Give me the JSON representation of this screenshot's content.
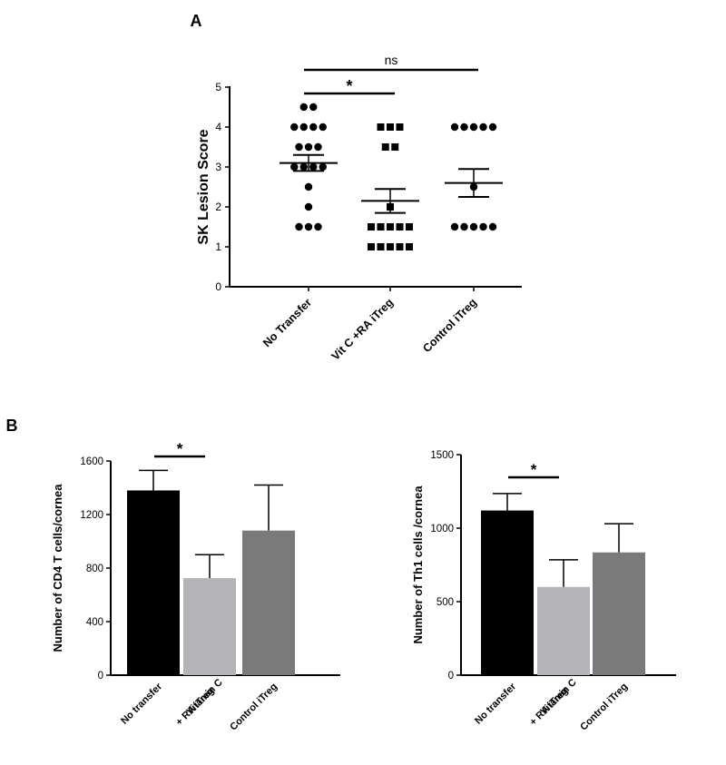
{
  "panels": {
    "a": {
      "letter": "A"
    },
    "b": {
      "letter": "B"
    }
  },
  "colors": {
    "axis": "#000000",
    "no_transfer": "#000000",
    "vitc": "#b4b4b8",
    "control": "#7a7a7a"
  },
  "chart_data": [
    {
      "type": "scatter",
      "panel": "A",
      "ylabel": "SK Lesion Score",
      "ylim": [
        0,
        5
      ],
      "yticks": [
        0,
        1,
        2,
        3,
        4,
        5
      ],
      "categories": [
        "No Transfer",
        "Vit C +RA iTreg",
        "Control iTreg"
      ],
      "markers": [
        "circle",
        "square",
        "circle"
      ],
      "points": [
        [
          4.5,
          4.5,
          4,
          4,
          4,
          4,
          3.5,
          3.5,
          3.5,
          3,
          3,
          3,
          3,
          2.5,
          2,
          1.5,
          1.5,
          1.5
        ],
        [
          4,
          4,
          4,
          3.5,
          3.5,
          2,
          1.5,
          1.5,
          1.5,
          1.5,
          1.5,
          1,
          1,
          1,
          1,
          1
        ],
        [
          4,
          4,
          4,
          4,
          4,
          2.5,
          1.5,
          1.5,
          1.5,
          1.5,
          1.5
        ]
      ],
      "means": [
        3.1,
        2.15,
        2.6
      ],
      "sem": [
        0.2,
        0.3,
        0.35
      ],
      "comparisons": [
        {
          "from": 0,
          "to": 1,
          "label": "*"
        },
        {
          "from": 0,
          "to": 2,
          "label": "ns"
        }
      ]
    },
    {
      "type": "bar",
      "panel": "B",
      "ylabel": "Number of CD4 T cells/cornea",
      "ylim": [
        0,
        1600
      ],
      "yticks": [
        0,
        400,
        800,
        1200,
        1600
      ],
      "categories": [
        "No transfer",
        "Vitamin C + RA iTreg",
        "Control iTreg"
      ],
      "category_lines": [
        [
          "No transfer"
        ],
        [
          "Vitamin C",
          "+ RA iTreg"
        ],
        [
          "Control iTreg"
        ]
      ],
      "values": [
        1380,
        725,
        1080
      ],
      "errors": [
        150,
        175,
        340
      ],
      "comparison": {
        "from": 0,
        "to": 1,
        "label": "*"
      }
    },
    {
      "type": "bar",
      "panel": "B",
      "ylabel": "Number of Th1 cells /cornea",
      "ylim": [
        0,
        1500
      ],
      "yticks": [
        0,
        500,
        1000,
        1500
      ],
      "categories": [
        "No transfer",
        "Vitamin C + RA iTreg",
        "Control iTreg"
      ],
      "category_lines": [
        [
          "No transfer"
        ],
        [
          "Vitamin C",
          "+ RA iTreg"
        ],
        [
          "Control iTreg"
        ]
      ],
      "values": [
        1120,
        600,
        835
      ],
      "errors": [
        115,
        185,
        195
      ],
      "comparison": {
        "from": 0,
        "to": 1,
        "label": "*"
      }
    }
  ]
}
